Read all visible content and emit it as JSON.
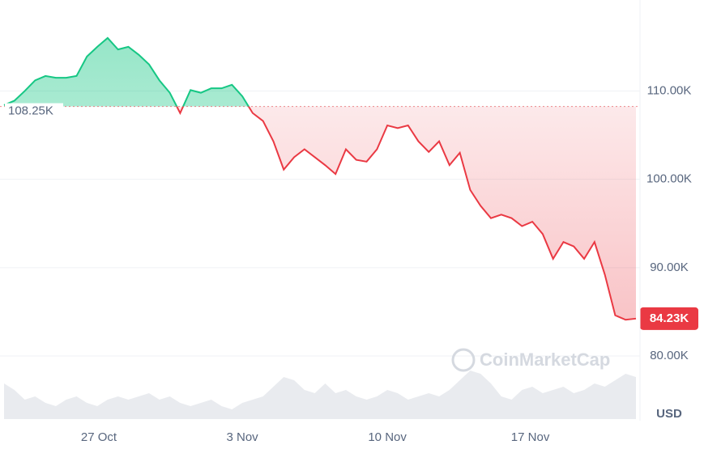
{
  "chart_data": {
    "type": "line",
    "baseline": {
      "value": 108.25,
      "label": "108.25K"
    },
    "current": {
      "value": 84.23,
      "label": "84.23K"
    },
    "values": [
      108.4,
      108.9,
      110.0,
      111.2,
      111.7,
      111.5,
      111.5,
      111.7,
      113.9,
      115.0,
      116.0,
      114.7,
      115.0,
      114.1,
      113.0,
      111.2,
      109.8,
      107.5,
      110.1,
      109.8,
      110.3,
      110.3,
      110.7,
      109.4,
      107.5,
      106.6,
      104.3,
      101.1,
      102.5,
      103.4,
      102.5,
      101.6,
      100.6,
      103.4,
      102.2,
      102.0,
      103.4,
      106.1,
      105.8,
      106.1,
      104.3,
      103.1,
      104.3,
      101.6,
      103.0,
      98.8,
      97.0,
      95.6,
      96.0,
      95.6,
      94.7,
      95.2,
      93.8,
      91.0,
      92.9,
      92.4,
      91.0,
      92.9,
      89.2,
      84.6,
      84.1,
      84.23
    ],
    "volume": [
      55,
      45,
      30,
      35,
      25,
      20,
      30,
      35,
      25,
      20,
      30,
      35,
      30,
      35,
      40,
      30,
      35,
      25,
      20,
      25,
      30,
      20,
      15,
      25,
      30,
      35,
      50,
      65,
      60,
      45,
      40,
      55,
      40,
      45,
      35,
      30,
      35,
      45,
      40,
      30,
      35,
      40,
      35,
      45,
      60,
      75,
      70,
      55,
      35,
      30,
      45,
      50,
      40,
      45,
      50,
      40,
      45,
      55,
      50,
      60,
      70,
      65
    ],
    "up_color": "#16c784",
    "down_color": "#ea3943",
    "xlim": [
      0,
      61
    ],
    "xticks": [
      {
        "value": 9.15,
        "label": "27 Oct"
      },
      {
        "value": 23,
        "label": "3 Nov"
      },
      {
        "value": 37,
        "label": "10 Nov"
      },
      {
        "value": 50.8,
        "label": "17 Nov"
      }
    ],
    "ylim": [
      80,
      120.3
    ],
    "yticks": [
      {
        "value": 80,
        "label": "80.00K"
      },
      {
        "value": 90,
        "label": "90.00K"
      },
      {
        "value": 100,
        "label": "100.00K"
      },
      {
        "value": 110,
        "label": "110.00K"
      }
    ],
    "volume_lim": [
      0,
      100
    ],
    "currency": "USD",
    "watermark": "CoinMarketCap",
    "grid": true
  }
}
